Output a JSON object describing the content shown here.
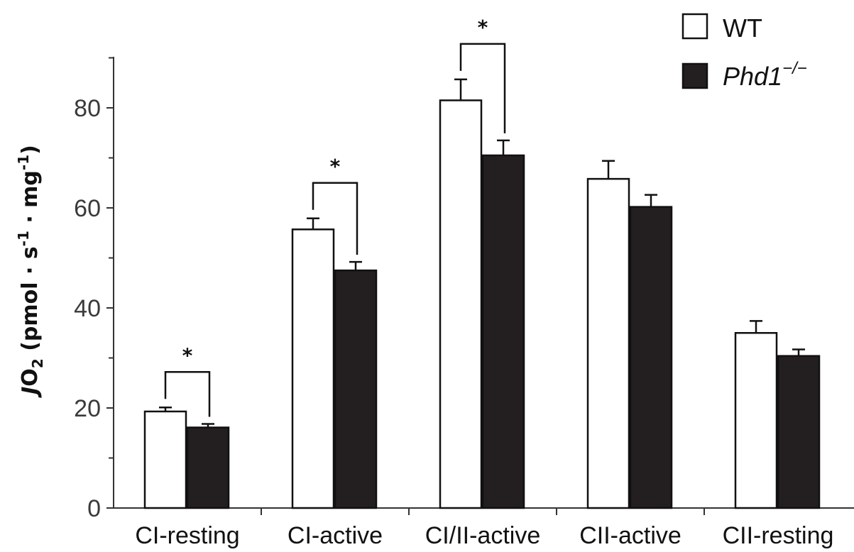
{
  "chart_data": {
    "type": "bar",
    "categories": [
      "CI-resting",
      "CI-active",
      "CI/II-active",
      "CII-active",
      "CII-resting"
    ],
    "series": [
      {
        "name": "WT",
        "values": [
          19.3,
          55.7,
          81.5,
          65.8,
          35.0
        ],
        "errors": [
          0.8,
          2.2,
          4.2,
          3.6,
          2.4
        ],
        "fill": "#ffffff"
      },
      {
        "name": "Phd1",
        "name_superscript": "−/−",
        "values": [
          16.1,
          47.5,
          70.5,
          60.2,
          30.4
        ],
        "errors": [
          0.7,
          1.7,
          3.0,
          2.4,
          1.3
        ],
        "fill": "#231f20"
      }
    ],
    "significance": [
      {
        "category": "CI-resting",
        "label": "*"
      },
      {
        "category": "CI-active",
        "label": "*"
      },
      {
        "category": "CI/II-active",
        "label": "*"
      }
    ],
    "ylabel": {
      "prefix": "J",
      "o": "O",
      "o_sub": "2",
      "unit_start": " (pmol · s",
      "s_sup": "-1",
      "unit_mid": " · mg",
      "mg_sup": "-1",
      "unit_end": ")"
    },
    "ylim": [
      0,
      90
    ],
    "yticks": [
      0,
      20,
      40,
      60,
      80
    ],
    "grid": false,
    "legend_position": "top-right",
    "colors": {
      "axis": "#333333",
      "wt_fill": "#ffffff",
      "ko_fill": "#231f20",
      "stroke": "#111111"
    }
  }
}
